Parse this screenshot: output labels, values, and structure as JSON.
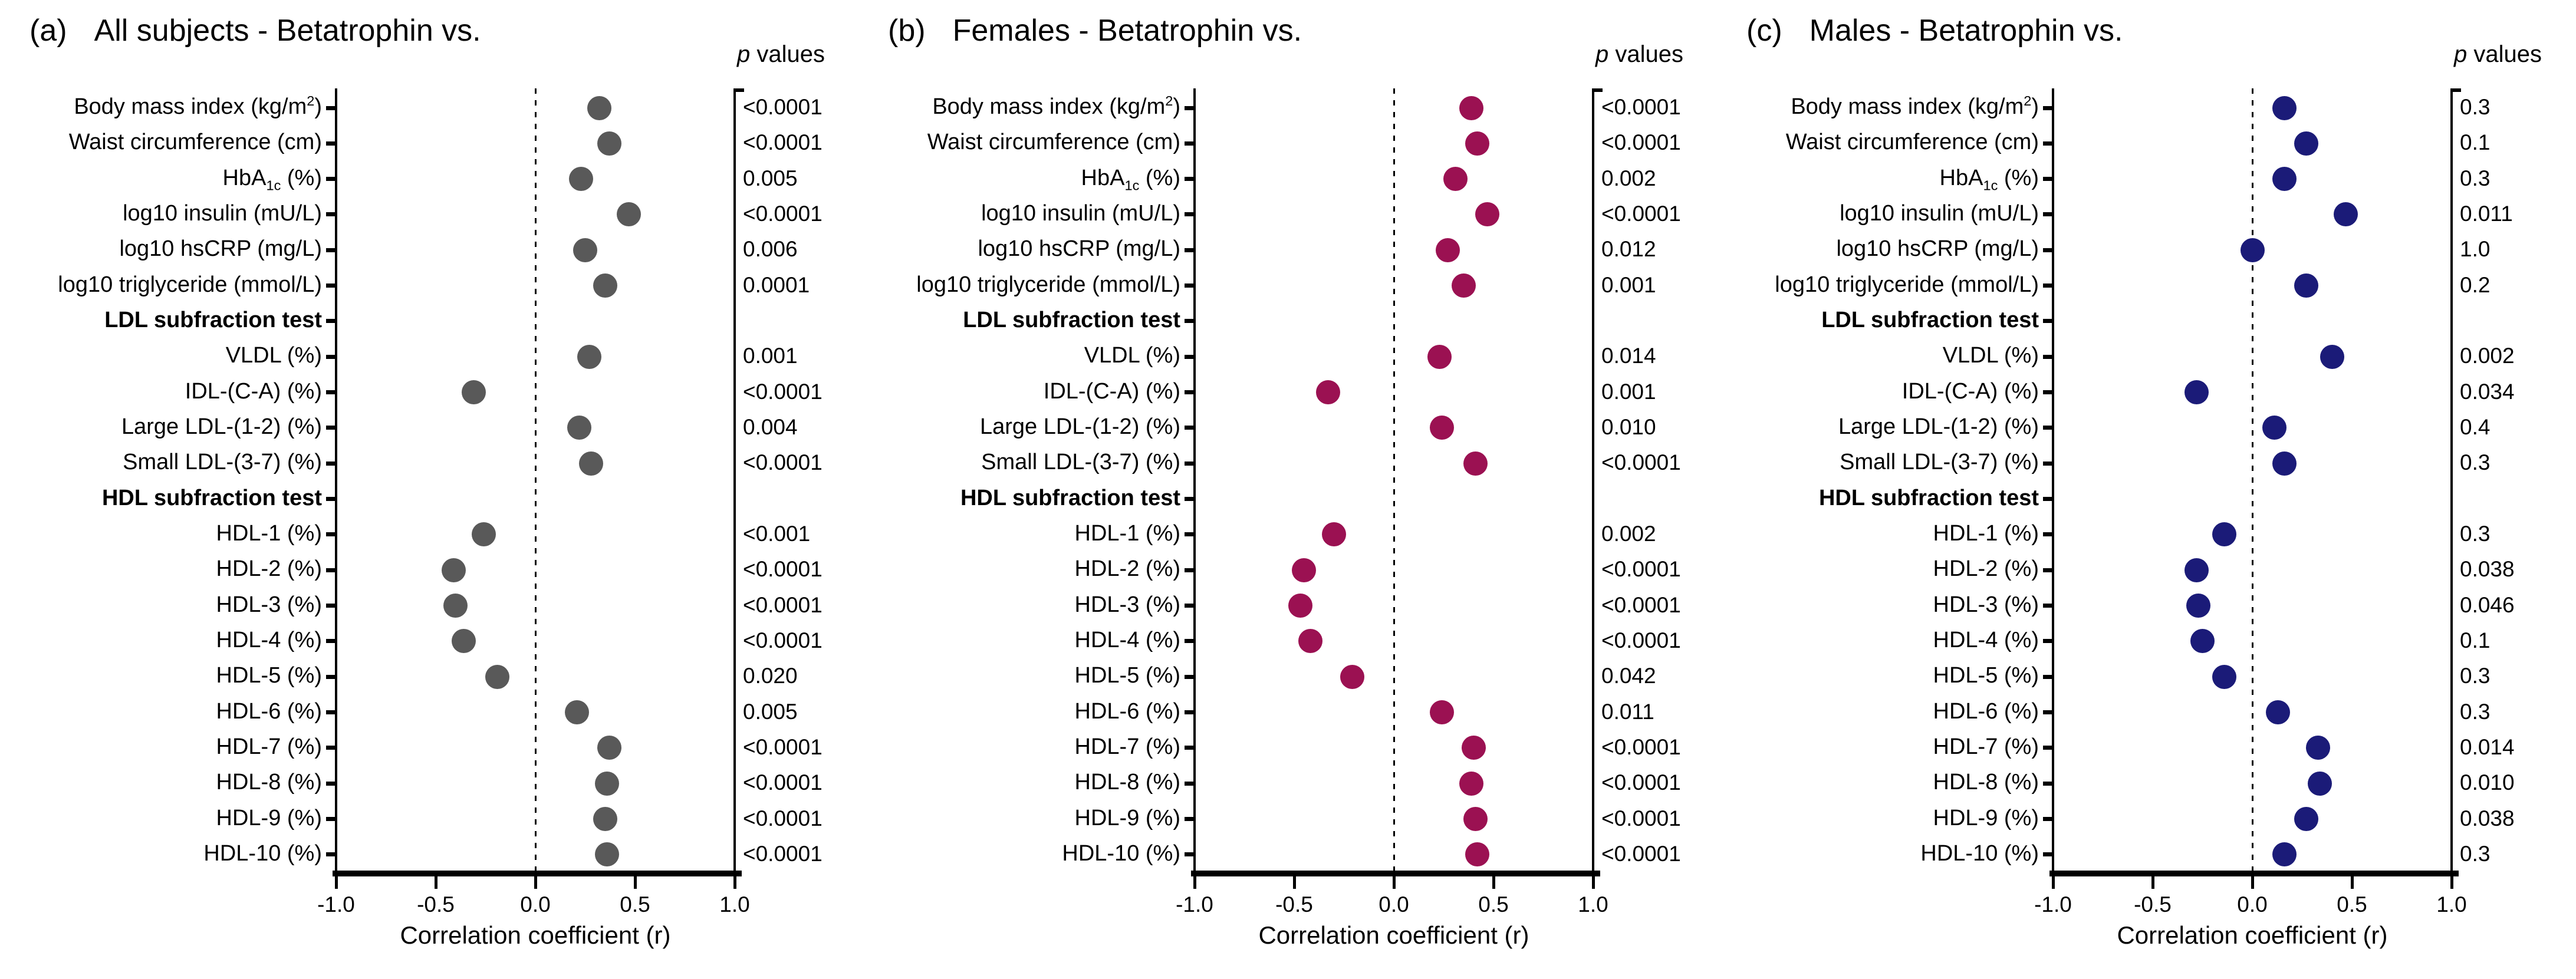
{
  "chart_data": [
    {
      "type": "scatter",
      "panel_label": "(a)",
      "title": "All subjects - Betatrophin vs.",
      "p_header_italic": "p",
      "p_header_rest": " values",
      "dot_color": "#595959",
      "xlabel": "Correlation coefficient (r)",
      "xlim": [
        -1.0,
        1.0
      ],
      "xtick_labels": [
        "-1.0",
        "-0.5",
        "0.0",
        "0.5",
        "1.0"
      ],
      "zero_line": true,
      "rows": [
        {
          "label": "Body mass index (kg/m^{2})",
          "r": 0.32,
          "p": "<0.0001"
        },
        {
          "label": "Waist circumference (cm)",
          "r": 0.37,
          "p": "<0.0001"
        },
        {
          "label": "HbA_{1c} (%)",
          "r": 0.23,
          "p": "0.005"
        },
        {
          "label": "log10 insulin (mU/L)",
          "r": 0.47,
          "p": "<0.0001"
        },
        {
          "label": "log10 hsCRP (mg/L)",
          "r": 0.25,
          "p": "0.006"
        },
        {
          "label": "log10 triglyceride (mmol/L)",
          "r": 0.35,
          "p": "0.0001"
        },
        {
          "label": "LDL subfraction test",
          "section": true,
          "r": null,
          "p": ""
        },
        {
          "label": "VLDL (%)",
          "r": 0.27,
          "p": "0.001"
        },
        {
          "label": "IDL-(C-A) (%)",
          "r": -0.31,
          "p": "<0.0001"
        },
        {
          "label": "Large LDL-(1-2) (%)",
          "r": 0.22,
          "p": "0.004"
        },
        {
          "label": "Small LDL-(3-7) (%)",
          "r": 0.28,
          "p": "<0.0001"
        },
        {
          "label": "HDL subfraction test",
          "section": true,
          "r": null,
          "p": ""
        },
        {
          "label": "HDL-1 (%)",
          "r": -0.26,
          "p": "<0.001"
        },
        {
          "label": "HDL-2 (%)",
          "r": -0.41,
          "p": "<0.0001"
        },
        {
          "label": "HDL-3 (%)",
          "r": -0.4,
          "p": "<0.0001"
        },
        {
          "label": "HDL-4 (%)",
          "r": -0.36,
          "p": "<0.0001"
        },
        {
          "label": "HDL-5 (%)",
          "r": -0.19,
          "p": "0.020"
        },
        {
          "label": "HDL-6 (%)",
          "r": 0.21,
          "p": "0.005"
        },
        {
          "label": "HDL-7 (%)",
          "r": 0.37,
          "p": "<0.0001"
        },
        {
          "label": "HDL-8 (%)",
          "r": 0.36,
          "p": "<0.0001"
        },
        {
          "label": "HDL-9 (%)",
          "r": 0.35,
          "p": "<0.0001"
        },
        {
          "label": "HDL-10 (%)",
          "r": 0.36,
          "p": "<0.0001"
        }
      ]
    },
    {
      "type": "scatter",
      "panel_label": "(b)",
      "title": "Females - Betatrophin vs.",
      "p_header_italic": "p",
      "p_header_rest": " values",
      "dot_color": "#9b1152",
      "xlabel": "Correlation coefficient (r)",
      "xlim": [
        -1.0,
        1.0
      ],
      "xtick_labels": [
        "-1.0",
        "-0.5",
        "0.0",
        "0.5",
        "1.0"
      ],
      "zero_line": true,
      "rows": [
        {
          "label": "Body mass index (kg/m^{2})",
          "r": 0.39,
          "p": "<0.0001"
        },
        {
          "label": "Waist circumference (cm)",
          "r": 0.42,
          "p": "<0.0001"
        },
        {
          "label": "HbA_{1c} (%)",
          "r": 0.31,
          "p": "0.002"
        },
        {
          "label": "log10 insulin (mU/L)",
          "r": 0.47,
          "p": "<0.0001"
        },
        {
          "label": "log10 hsCRP (mg/L)",
          "r": 0.27,
          "p": "0.012"
        },
        {
          "label": "log10 triglyceride (mmol/L)",
          "r": 0.35,
          "p": "0.001"
        },
        {
          "label": "LDL subfraction test",
          "section": true,
          "r": null,
          "p": ""
        },
        {
          "label": "VLDL (%)",
          "r": 0.23,
          "p": "0.014"
        },
        {
          "label": "IDL-(C-A) (%)",
          "r": -0.33,
          "p": "0.001"
        },
        {
          "label": "Large LDL-(1-2) (%)",
          "r": 0.24,
          "p": "0.010"
        },
        {
          "label": "Small LDL-(3-7) (%)",
          "r": 0.41,
          "p": "<0.0001"
        },
        {
          "label": "HDL subfraction test",
          "section": true,
          "r": null,
          "p": ""
        },
        {
          "label": "HDL-1 (%)",
          "r": -0.3,
          "p": "0.002"
        },
        {
          "label": "HDL-2 (%)",
          "r": -0.45,
          "p": "<0.0001"
        },
        {
          "label": "HDL-3 (%)",
          "r": -0.47,
          "p": "<0.0001"
        },
        {
          "label": "HDL-4 (%)",
          "r": -0.42,
          "p": "<0.0001"
        },
        {
          "label": "HDL-5 (%)",
          "r": -0.21,
          "p": "0.042"
        },
        {
          "label": "HDL-6 (%)",
          "r": 0.24,
          "p": "0.011"
        },
        {
          "label": "HDL-7 (%)",
          "r": 0.4,
          "p": "<0.0001"
        },
        {
          "label": "HDL-8 (%)",
          "r": 0.39,
          "p": "<0.0001"
        },
        {
          "label": "HDL-9 (%)",
          "r": 0.41,
          "p": "<0.0001"
        },
        {
          "label": "HDL-10 (%)",
          "r": 0.42,
          "p": "<0.0001"
        }
      ]
    },
    {
      "type": "scatter",
      "panel_label": "(c)",
      "title": "Males - Betatrophin vs.",
      "p_header_italic": "p",
      "p_header_rest": " values",
      "dot_color": "#1b1b78",
      "xlabel": "Correlation coefficient (r)",
      "xlim": [
        -1.0,
        1.0
      ],
      "xtick_labels": [
        "-1.0",
        "-0.5",
        "0.0",
        "0.5",
        "1.0"
      ],
      "zero_line": true,
      "rows": [
        {
          "label": "Body mass index (kg/m^{2})",
          "r": 0.16,
          "p": "0.3"
        },
        {
          "label": "Waist circumference (cm)",
          "r": 0.27,
          "p": "0.1"
        },
        {
          "label": "HbA_{1c} (%)",
          "r": 0.16,
          "p": "0.3"
        },
        {
          "label": "log10 insulin (mU/L)",
          "r": 0.47,
          "p": "0.011"
        },
        {
          "label": "log10 hsCRP (mg/L)",
          "r": 0.0,
          "p": "1.0"
        },
        {
          "label": "log10 triglyceride (mmol/L)",
          "r": 0.27,
          "p": "0.2"
        },
        {
          "label": "LDL subfraction test",
          "section": true,
          "r": null,
          "p": ""
        },
        {
          "label": "VLDL (%)",
          "r": 0.4,
          "p": "0.002"
        },
        {
          "label": "IDL-(C-A) (%)",
          "r": -0.28,
          "p": "0.034"
        },
        {
          "label": "Large LDL-(1-2) (%)",
          "r": 0.11,
          "p": "0.4"
        },
        {
          "label": "Small LDL-(3-7) (%)",
          "r": 0.16,
          "p": "0.3"
        },
        {
          "label": "HDL subfraction test",
          "section": true,
          "r": null,
          "p": ""
        },
        {
          "label": "HDL-1 (%)",
          "r": -0.14,
          "p": "0.3"
        },
        {
          "label": "HDL-2 (%)",
          "r": -0.28,
          "p": "0.038"
        },
        {
          "label": "HDL-3 (%)",
          "r": -0.27,
          "p": "0.046"
        },
        {
          "label": "HDL-4 (%)",
          "r": -0.25,
          "p": "0.1"
        },
        {
          "label": "HDL-5 (%)",
          "r": -0.14,
          "p": "0.3"
        },
        {
          "label": "HDL-6 (%)",
          "r": 0.13,
          "p": "0.3"
        },
        {
          "label": "HDL-7 (%)",
          "r": 0.33,
          "p": "0.014"
        },
        {
          "label": "HDL-8 (%)",
          "r": 0.34,
          "p": "0.010"
        },
        {
          "label": "HDL-9 (%)",
          "r": 0.27,
          "p": "0.038"
        },
        {
          "label": "HDL-10 (%)",
          "r": 0.16,
          "p": "0.3"
        }
      ]
    }
  ]
}
